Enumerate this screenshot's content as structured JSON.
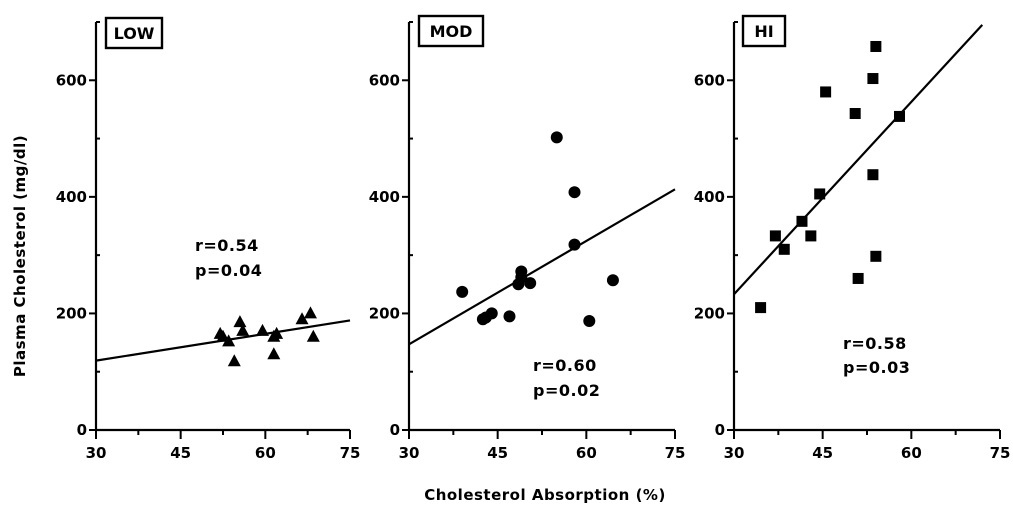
{
  "y_axis_title": "Plasma Cholesterol (mg/dl)",
  "x_axis_title": "Cholesterol Absorption (%)",
  "chart_data": [
    {
      "type": "scatter",
      "label": "LOW",
      "marker": "triangle",
      "xlim": [
        30,
        75
      ],
      "ylim": [
        0,
        700
      ],
      "xticks": [
        "30",
        "45",
        "60",
        "75"
      ],
      "yticks": [
        "0",
        "200",
        "400",
        "600"
      ],
      "points": [
        [
          52,
          165
        ],
        [
          52.5,
          160
        ],
        [
          53.5,
          152
        ],
        [
          54.5,
          118
        ],
        [
          55.5,
          185
        ],
        [
          56,
          170
        ],
        [
          59.5,
          170
        ],
        [
          61.5,
          130
        ],
        [
          61.5,
          160
        ],
        [
          62,
          165
        ],
        [
          66.5,
          190
        ],
        [
          68,
          200
        ],
        [
          68.5,
          160
        ]
      ],
      "regression": {
        "x": [
          30,
          75
        ],
        "y": [
          119,
          188
        ]
      },
      "stat_r": "r=0.54",
      "stat_p": "p=0.04"
    },
    {
      "type": "scatter",
      "label": "MOD",
      "marker": "circle",
      "xlim": [
        30,
        75
      ],
      "ylim": [
        0,
        700
      ],
      "xticks": [
        "30",
        "45",
        "60",
        "75"
      ],
      "yticks": [
        "0",
        "200",
        "400",
        "600"
      ],
      "points": [
        [
          39,
          237
        ],
        [
          42.5,
          190
        ],
        [
          43,
          193
        ],
        [
          44,
          200
        ],
        [
          47,
          195
        ],
        [
          48.5,
          250
        ],
        [
          49,
          262
        ],
        [
          49,
          272
        ],
        [
          50.5,
          252
        ],
        [
          55,
          502
        ],
        [
          58,
          318
        ],
        [
          58,
          408
        ],
        [
          60.5,
          187
        ],
        [
          64.5,
          257
        ]
      ],
      "regression": {
        "x": [
          30,
          75
        ],
        "y": [
          147,
          413
        ]
      },
      "stat_r": "r=0.60",
      "stat_p": "p=0.02"
    },
    {
      "type": "scatter",
      "label": "HI",
      "marker": "square",
      "xlim": [
        30,
        75
      ],
      "ylim": [
        0,
        700
      ],
      "xticks": [
        "30",
        "45",
        "60",
        "75"
      ],
      "yticks": [
        "0",
        "200",
        "400",
        "600"
      ],
      "points": [
        [
          34.5,
          210
        ],
        [
          37,
          333
        ],
        [
          38.5,
          310
        ],
        [
          41.5,
          358
        ],
        [
          43,
          333
        ],
        [
          44.5,
          405
        ],
        [
          45.5,
          580
        ],
        [
          50.5,
          543
        ],
        [
          51,
          260
        ],
        [
          53.5,
          438
        ],
        [
          53.5,
          603
        ],
        [
          54,
          298
        ],
        [
          54,
          658
        ],
        [
          58,
          538
        ]
      ],
      "regression": {
        "x": [
          30,
          72
        ],
        "y": [
          233,
          695
        ]
      },
      "stat_r": "r=0.58",
      "stat_p": "p=0.03"
    }
  ]
}
